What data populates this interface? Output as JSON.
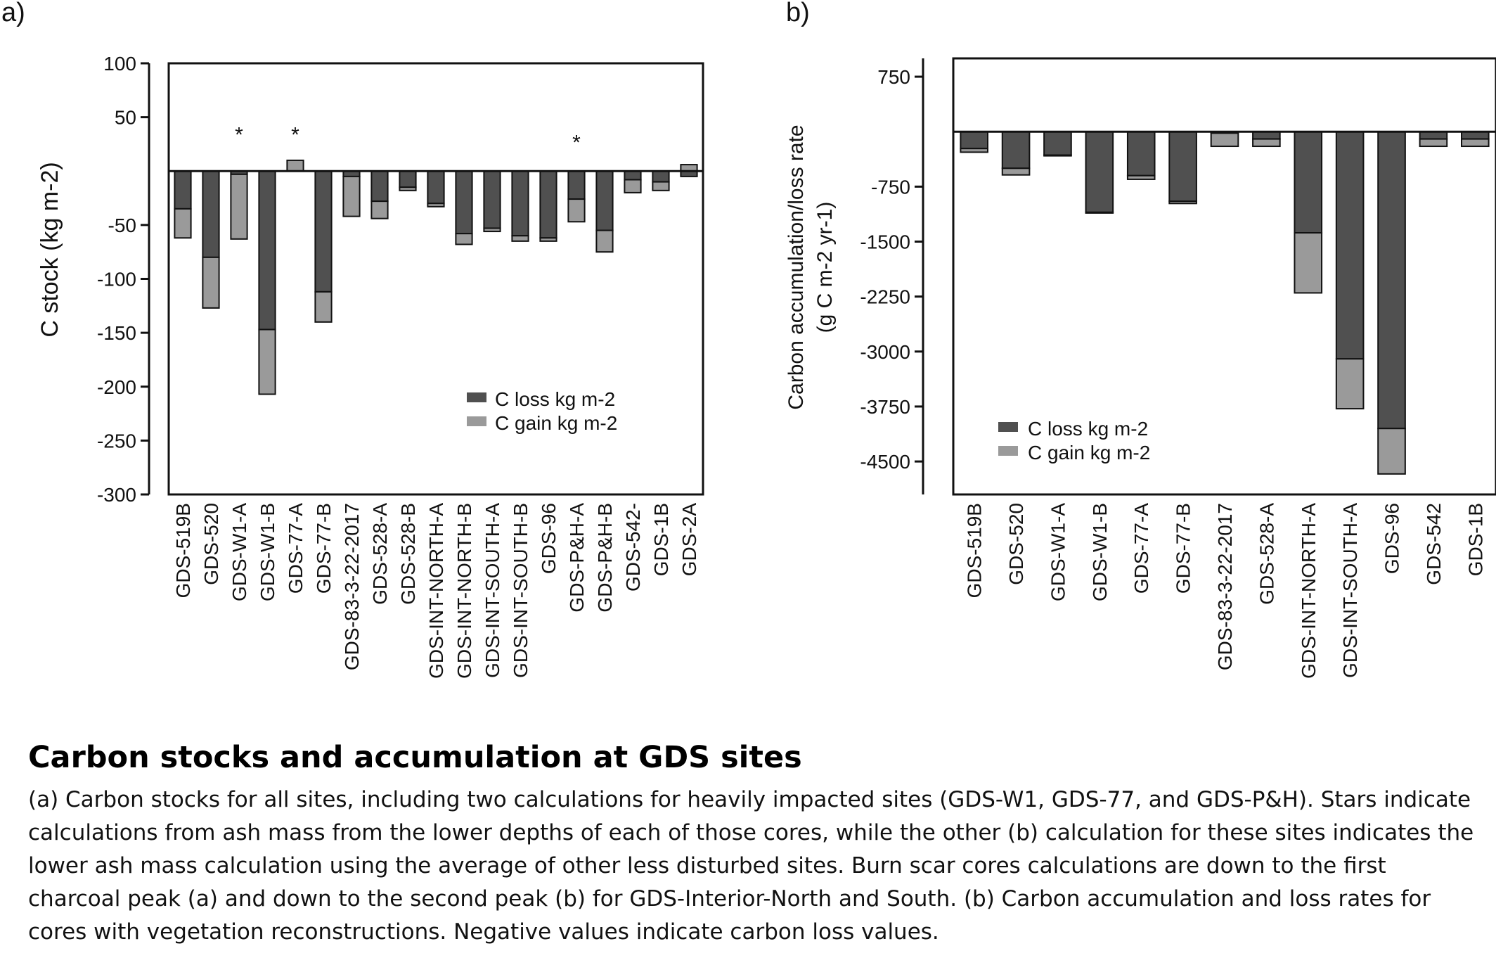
{
  "figure": {
    "colors": {
      "loss": "#505050",
      "gain": "#9a9a9a",
      "axis": "#111111"
    }
  },
  "chart_data": [
    {
      "type": "bar",
      "stacked": true,
      "panel_label": "a)",
      "ylabel": "C stock (kg m-2)",
      "xlabel": "",
      "ylim": [
        -300,
        100
      ],
      "yticks": [
        100,
        50,
        -50,
        -100,
        -150,
        -200,
        -250,
        -300
      ],
      "grid": false,
      "legend_position": "bottom-right",
      "categories": [
        "GDS-519B",
        "GDS-520",
        "GDS-W1-A",
        "GDS-W1-B",
        "GDS-77-A",
        "GDS-77-B",
        "GDS-83-3-22-2017",
        "GDS-528-A",
        "GDS-528-B",
        "GDS-INT-NORTH-A",
        "GDS-INT-NORTH-B",
        "GDS-INT-SOUTH-A",
        "GDS-INT-SOUTH-B",
        "GDS-96",
        "GDS-P&H-A",
        "GDS-P&H-B",
        "GDS-542-",
        "GDS-1B",
        "GDS-2A"
      ],
      "series": [
        {
          "name": "C loss kg m-2",
          "values": [
            -35,
            -80,
            -3,
            -147,
            0,
            -112,
            -5,
            -28,
            -15,
            -30,
            -58,
            -53,
            -60,
            -62,
            -26,
            -55,
            -8,
            -10,
            -5
          ]
        },
        {
          "name": "C gain kg m-2",
          "values": [
            -27,
            -47,
            -60,
            -60,
            10,
            -28,
            -37,
            -16,
            -3,
            -3,
            -10,
            -3,
            -5,
            -3,
            -21,
            -20,
            -12,
            -8,
            6
          ]
        }
      ],
      "annotations": [
        {
          "category": "GDS-W1-A",
          "text": "*",
          "y": 35
        },
        {
          "category": "GDS-77-A",
          "text": "*",
          "y": 35
        },
        {
          "category": "GDS-P&H-A",
          "text": "*",
          "y": 28
        }
      ]
    },
    {
      "type": "bar",
      "stacked": true,
      "panel_label": "b)",
      "ylabel": "Carbon accumulation/loss rate",
      "ylabel2": "(g C m-2 yr-1)",
      "xlabel": "",
      "ylim": [
        -4950,
        1000
      ],
      "yticks": [
        750,
        -750,
        -1500,
        -2250,
        -3000,
        -3750,
        -4500
      ],
      "grid": false,
      "legend_position": "bottom-left",
      "categories": [
        "GDS-519B",
        "GDS-520",
        "GDS-W1-A",
        "GDS-W1-B",
        "GDS-77-A",
        "GDS-77-B",
        "GDS-83-3-22-2017",
        "GDS-528-A",
        "GDS-INT-NORTH-A",
        "GDS-INT-SOUTH-A",
        "GDS-96",
        "GDS-542",
        "GDS-1B"
      ],
      "series": [
        {
          "name": "C loss kg m-2",
          "values": [
            -230,
            -500,
            -320,
            -1100,
            -600,
            -950,
            -20,
            -100,
            -1380,
            -3100,
            -4050,
            -100,
            -100
          ]
        },
        {
          "name": "C gain kg m-2",
          "values": [
            -50,
            -90,
            -10,
            -10,
            -50,
            -30,
            -180,
            -100,
            -820,
            -680,
            -620,
            -100,
            -100
          ]
        }
      ]
    }
  ],
  "caption": {
    "title": "Carbon stocks and accumulation at GDS sites",
    "text": "(a) Carbon stocks for all sites, including two calculations for heavily impacted sites (GDS-W1, GDS-77, and GDS-P&H). Stars indicate calculations from ash mass from the lower depths of each of those cores, while the other (b) calculation for these sites indicates the lower ash mass calculation using the average of other less disturbed sites. Burn scar cores calculations are down to the first charcoal peak (a) and down to the second peak (b) for GDS-Interior-North and South. (b) Carbon accumulation and loss rates for cores with vegetation reconstructions. Negative values indicate carbon loss values."
  }
}
